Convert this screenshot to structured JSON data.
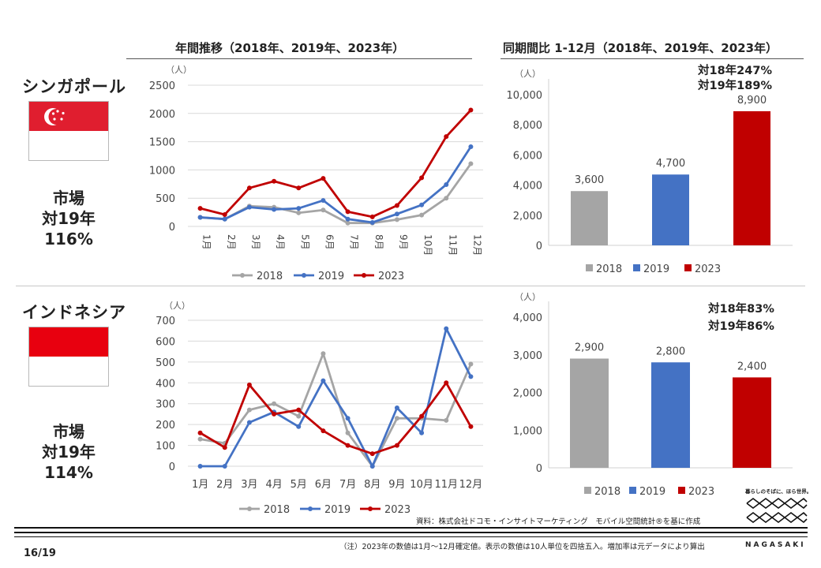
{
  "headings": {
    "annual": "年間推移（2018年、2019年、2023年）",
    "period": "同期間比 1-12月（2018年、2019年、2023年）"
  },
  "countries": [
    {
      "name": "シンガポール",
      "market": [
        "市場",
        "対19年",
        "116%"
      ]
    },
    {
      "name": "インドネシア",
      "market": [
        "市場",
        "対19年",
        "114%"
      ]
    }
  ],
  "colors": {
    "s2018": "#a5a5a5",
    "s2019": "#4472c4",
    "s2023": "#c00000",
    "sg_red": "#e01e2f",
    "id_red": "#e8000f"
  },
  "chart_data": [
    {
      "type": "line",
      "unit": "（人）",
      "categories": [
        "1月",
        "2月",
        "3月",
        "4月",
        "5月",
        "6月",
        "7月",
        "8月",
        "9月",
        "10月",
        "11月",
        "12月"
      ],
      "ylim": [
        0,
        2500
      ],
      "yticks": [
        0,
        500,
        1000,
        1500,
        2000,
        2500
      ],
      "series": [
        {
          "name": "2018",
          "values": [
            160,
            130,
            360,
            340,
            240,
            290,
            60,
            60,
            120,
            200,
            500,
            1110
          ]
        },
        {
          "name": "2019",
          "values": [
            160,
            130,
            340,
            300,
            320,
            460,
            130,
            70,
            220,
            380,
            740,
            1410
          ]
        },
        {
          "name": "2023",
          "values": [
            320,
            210,
            680,
            800,
            680,
            850,
            260,
            170,
            370,
            860,
            1590,
            2060
          ]
        }
      ]
    },
    {
      "type": "bar",
      "unit": "（人）",
      "categories": [
        "2018",
        "2019",
        "2023"
      ],
      "values": [
        3600,
        4700,
        8900
      ],
      "labels": [
        "3,600",
        "4,700",
        "8,900"
      ],
      "ylim": [
        0,
        10000
      ],
      "yticks": [
        0,
        2000,
        4000,
        6000,
        8000,
        10000
      ],
      "ytick_labels": [
        "0",
        "2,000",
        "4,000",
        "6,000",
        "8,000",
        "10,000"
      ],
      "annotations": [
        "対18年247%",
        "対19年189%"
      ]
    },
    {
      "type": "line",
      "unit": "（人）",
      "categories": [
        "1月",
        "2月",
        "3月",
        "4月",
        "5月",
        "6月",
        "7月",
        "8月",
        "9月",
        "10月",
        "11月",
        "12月"
      ],
      "ylim": [
        0,
        700
      ],
      "yticks": [
        0,
        100,
        200,
        300,
        400,
        500,
        600,
        700
      ],
      "series": [
        {
          "name": "2018",
          "values": [
            130,
            110,
            270,
            300,
            240,
            540,
            160,
            0,
            230,
            230,
            220,
            490
          ]
        },
        {
          "name": "2019",
          "values": [
            0,
            0,
            210,
            260,
            190,
            410,
            230,
            0,
            280,
            160,
            660,
            430
          ]
        },
        {
          "name": "2023",
          "values": [
            160,
            90,
            390,
            250,
            270,
            170,
            100,
            60,
            100,
            240,
            400,
            190
          ]
        }
      ]
    },
    {
      "type": "bar",
      "unit": "（人）",
      "categories": [
        "2018",
        "2019",
        "2023"
      ],
      "values": [
        2900,
        2800,
        2400
      ],
      "labels": [
        "2,900",
        "2,800",
        "2,400"
      ],
      "ylim": [
        0,
        4000
      ],
      "yticks": [
        0,
        1000,
        2000,
        3000,
        4000
      ],
      "ytick_labels": [
        "0",
        "1,000",
        "2,000",
        "3,000",
        "4,000"
      ],
      "annotations": [
        "対18年83%",
        "対19年86%"
      ]
    }
  ],
  "footer": {
    "source": "資料：株式会社ドコモ・インサイトマーケティング　モバイル空間統計®を基に作成",
    "note": "（注）2023年の数値は1月～12月確定値。表示の数値は10人単位を四捨五入。増加率は元データにより算出",
    "page": "16/19",
    "logo_tagline": "暮らしのそばに、ほら世界。",
    "logo_word": "NAGASAKI"
  }
}
